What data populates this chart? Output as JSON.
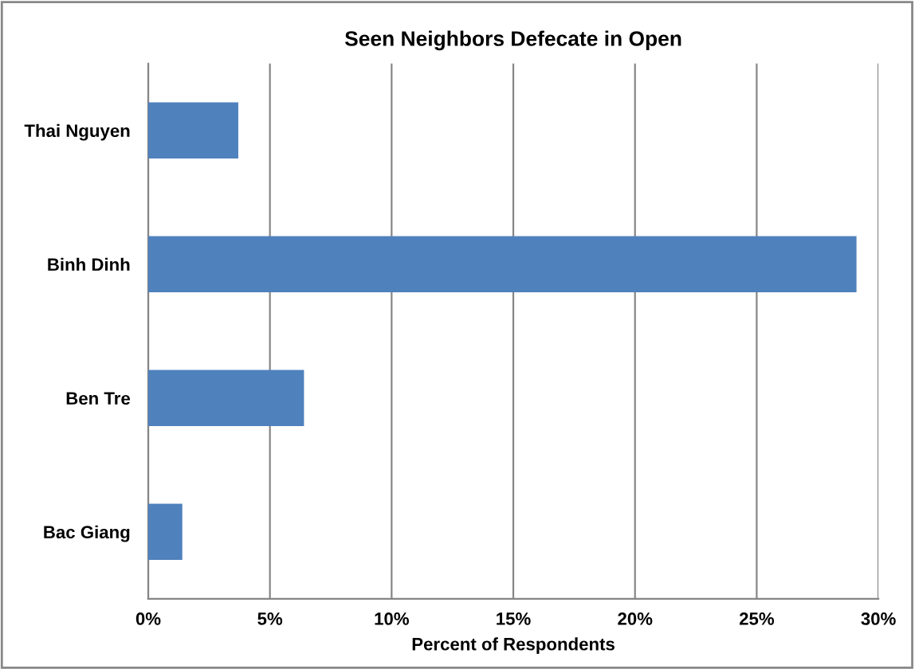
{
  "chart_data": {
    "type": "bar",
    "orientation": "horizontal",
    "title": "Seen Neighbors Defecate in Open",
    "xlabel": "Percent of Respondents",
    "categories": [
      "Thai Nguyen",
      "Binh Dinh",
      "Ben Tre",
      "Bac Giang"
    ],
    "values": [
      3.7,
      29.1,
      6.4,
      1.4
    ],
    "color": "#4f81bd",
    "xlim": [
      0,
      30
    ],
    "xticks": [
      {
        "value": 0,
        "label": "0%"
      },
      {
        "value": 5,
        "label": "5%"
      },
      {
        "value": 10,
        "label": "10%"
      },
      {
        "value": 15,
        "label": "15%"
      },
      {
        "value": 20,
        "label": "20%"
      },
      {
        "value": 25,
        "label": "25%"
      },
      {
        "value": 30,
        "label": "30%"
      }
    ],
    "grid": "x",
    "legend": false
  }
}
